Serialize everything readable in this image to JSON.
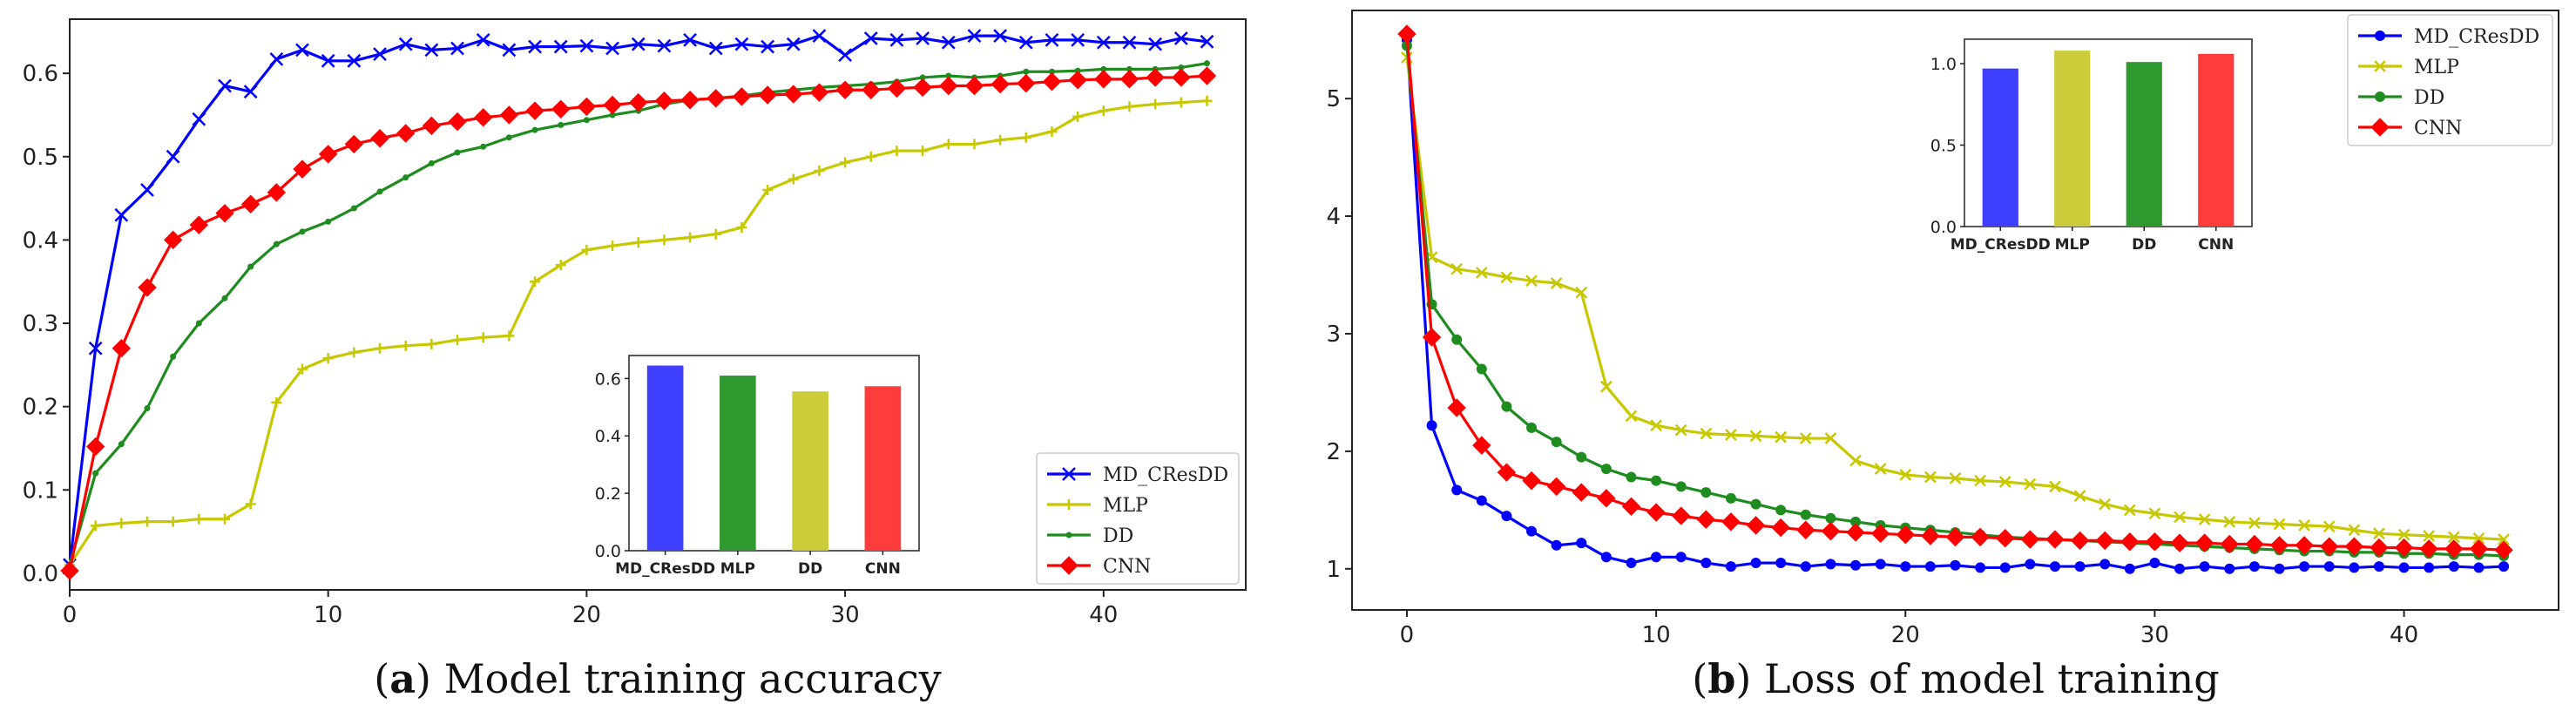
{
  "chart_data": [
    {
      "type": "line",
      "caption_label": "a",
      "caption_text": "Model training accuracy",
      "title": "",
      "xlabel": "",
      "ylabel": "",
      "xlim": [
        0,
        45.5
      ],
      "ylim": [
        -0.02,
        0.665
      ],
      "xticks": [
        0,
        10,
        20,
        30,
        40
      ],
      "yticks": [
        0.0,
        0.1,
        0.2,
        0.3,
        0.4,
        0.5,
        0.6
      ],
      "ytick_labels": [
        "0.0",
        "0.1",
        "0.2",
        "0.3",
        "0.4",
        "0.5",
        "0.6"
      ],
      "legend_position": "lower-right",
      "series": [
        {
          "name": "MD_CResDD",
          "color": "#0000ff",
          "marker": "x",
          "values": [
            0.01,
            0.27,
            0.43,
            0.46,
            0.5,
            0.545,
            0.585,
            0.578,
            0.617,
            0.628,
            0.615,
            0.615,
            0.623,
            0.635,
            0.628,
            0.63,
            0.64,
            0.628,
            0.632,
            0.632,
            0.633,
            0.63,
            0.635,
            0.633,
            0.64,
            0.63,
            0.635,
            0.632,
            0.635,
            0.645,
            0.622,
            0.642,
            0.64,
            0.642,
            0.637,
            0.645,
            0.645,
            0.637,
            0.64,
            0.64,
            0.637,
            0.637,
            0.635,
            0.642,
            0.638
          ]
        },
        {
          "name": "MLP",
          "color": "#c8c800",
          "marker": "+",
          "values": [
            0.01,
            0.057,
            0.06,
            0.062,
            0.062,
            0.065,
            0.065,
            0.083,
            0.205,
            0.245,
            0.258,
            0.265,
            0.27,
            0.273,
            0.275,
            0.28,
            0.283,
            0.285,
            0.35,
            0.37,
            0.388,
            0.393,
            0.397,
            0.4,
            0.403,
            0.407,
            0.415,
            0.46,
            0.473,
            0.483,
            0.493,
            0.5,
            0.507,
            0.507,
            0.515,
            0.515,
            0.52,
            0.523,
            0.53,
            0.548,
            0.555,
            0.56,
            0.563,
            0.565,
            0.567
          ]
        },
        {
          "name": "DD",
          "color": "#1e8c1e",
          "marker": "dot",
          "values": [
            0.01,
            0.12,
            0.155,
            0.198,
            0.26,
            0.3,
            0.33,
            0.368,
            0.395,
            0.41,
            0.422,
            0.438,
            0.458,
            0.475,
            0.492,
            0.505,
            0.512,
            0.523,
            0.532,
            0.538,
            0.544,
            0.55,
            0.555,
            0.563,
            0.568,
            0.57,
            0.573,
            0.577,
            0.58,
            0.583,
            0.585,
            0.587,
            0.59,
            0.595,
            0.597,
            0.595,
            0.597,
            0.602,
            0.602,
            0.603,
            0.605,
            0.605,
            0.605,
            0.607,
            0.612
          ]
        },
        {
          "name": "CNN",
          "color": "#ff0000",
          "marker": "diamond",
          "values": [
            0.003,
            0.152,
            0.27,
            0.343,
            0.4,
            0.418,
            0.432,
            0.443,
            0.457,
            0.485,
            0.503,
            0.515,
            0.522,
            0.528,
            0.537,
            0.542,
            0.547,
            0.55,
            0.555,
            0.557,
            0.56,
            0.562,
            0.565,
            0.567,
            0.568,
            0.57,
            0.572,
            0.574,
            0.575,
            0.577,
            0.58,
            0.58,
            0.582,
            0.583,
            0.585,
            0.585,
            0.587,
            0.588,
            0.59,
            0.592,
            0.593,
            0.593,
            0.595,
            0.595,
            0.597
          ]
        }
      ],
      "inset": {
        "type": "bar",
        "position": "lower-right",
        "categories": [
          "MD_CResDD",
          "MLP",
          "DD",
          "CNN"
        ],
        "colors": [
          "#3f3fff",
          "#2f992f",
          "#cccc3a",
          "#ff3c3c"
        ],
        "values": [
          0.645,
          0.61,
          0.555,
          0.573
        ],
        "ylim": [
          0,
          0.68
        ],
        "yticks": [
          0.0,
          0.2,
          0.4,
          0.6
        ],
        "ytick_labels": [
          "0.0",
          "0.2",
          "0.4",
          "0.6"
        ]
      }
    },
    {
      "type": "line",
      "caption_label": "b",
      "caption_text": "Loss of model training",
      "title": "",
      "xlabel": "",
      "ylabel": "",
      "xlim": [
        -2.2,
        46.2
      ],
      "ylim": [
        0.65,
        5.75
      ],
      "xticks": [
        0,
        10,
        20,
        30,
        40
      ],
      "yticks": [
        1,
        2,
        3,
        4,
        5
      ],
      "ytick_labels": [
        "1",
        "2",
        "3",
        "4",
        "5"
      ],
      "legend_position": "top-right",
      "series": [
        {
          "name": "MD_CResDD",
          "color": "#0000ff",
          "marker": "dot",
          "values": [
            5.5,
            2.22,
            1.67,
            1.58,
            1.45,
            1.32,
            1.2,
            1.22,
            1.1,
            1.05,
            1.1,
            1.1,
            1.05,
            1.02,
            1.05,
            1.05,
            1.02,
            1.04,
            1.03,
            1.04,
            1.02,
            1.02,
            1.03,
            1.01,
            1.01,
            1.04,
            1.02,
            1.02,
            1.04,
            1.0,
            1.05,
            1.0,
            1.02,
            1.0,
            1.02,
            1.0,
            1.02,
            1.02,
            1.01,
            1.02,
            1.01,
            1.01,
            1.02,
            1.01,
            1.02
          ]
        },
        {
          "name": "MLP",
          "color": "#c8c800",
          "marker": "x",
          "values": [
            5.35,
            3.65,
            3.55,
            3.52,
            3.48,
            3.45,
            3.43,
            3.35,
            2.55,
            2.3,
            2.22,
            2.18,
            2.15,
            2.14,
            2.13,
            2.12,
            2.11,
            2.11,
            1.92,
            1.85,
            1.8,
            1.78,
            1.77,
            1.75,
            1.74,
            1.72,
            1.7,
            1.62,
            1.55,
            1.5,
            1.47,
            1.44,
            1.42,
            1.4,
            1.39,
            1.38,
            1.37,
            1.36,
            1.33,
            1.3,
            1.29,
            1.28,
            1.27,
            1.26,
            1.25
          ]
        },
        {
          "name": "DD",
          "color": "#1e8c1e",
          "marker": "dot",
          "values": [
            5.45,
            3.25,
            2.95,
            2.7,
            2.38,
            2.2,
            2.08,
            1.95,
            1.85,
            1.78,
            1.75,
            1.7,
            1.65,
            1.6,
            1.55,
            1.5,
            1.46,
            1.43,
            1.4,
            1.37,
            1.35,
            1.33,
            1.31,
            1.29,
            1.27,
            1.26,
            1.25,
            1.24,
            1.23,
            1.22,
            1.21,
            1.2,
            1.19,
            1.18,
            1.17,
            1.16,
            1.15,
            1.15,
            1.14,
            1.14,
            1.13,
            1.13,
            1.12,
            1.12,
            1.11
          ]
        },
        {
          "name": "CNN",
          "color": "#ff0000",
          "marker": "diamond",
          "values": [
            5.55,
            2.97,
            2.37,
            2.05,
            1.82,
            1.75,
            1.7,
            1.65,
            1.6,
            1.53,
            1.48,
            1.45,
            1.42,
            1.4,
            1.37,
            1.35,
            1.33,
            1.32,
            1.31,
            1.3,
            1.29,
            1.28,
            1.27,
            1.27,
            1.26,
            1.25,
            1.25,
            1.24,
            1.24,
            1.23,
            1.23,
            1.22,
            1.22,
            1.21,
            1.21,
            1.2,
            1.2,
            1.19,
            1.19,
            1.18,
            1.18,
            1.17,
            1.17,
            1.17,
            1.16
          ]
        }
      ],
      "inset": {
        "type": "bar",
        "position": "top-center",
        "categories": [
          "MD_CResDD",
          "MLP",
          "DD",
          "CNN"
        ],
        "colors": [
          "#3f3fff",
          "#cccc3a",
          "#2f992f",
          "#ff3c3c"
        ],
        "values": [
          0.97,
          1.08,
          1.01,
          1.06
        ],
        "ylim": [
          0,
          1.15
        ],
        "yticks": [
          0.0,
          0.5,
          1.0
        ],
        "ytick_labels": [
          "0.0",
          "0.5",
          "1.0"
        ]
      }
    }
  ]
}
